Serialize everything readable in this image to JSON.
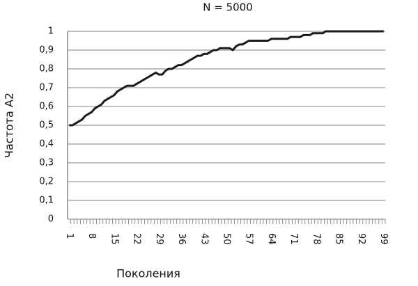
{
  "chart_data": {
    "type": "line",
    "title": "N = 5000",
    "y_label": "Частота А2",
    "x_label": "Поколения",
    "categories": [
      "1",
      null,
      null,
      null,
      null,
      null,
      null,
      "8",
      null,
      null,
      null,
      null,
      null,
      null,
      "15",
      null,
      null,
      null,
      null,
      null,
      null,
      "22",
      null,
      null,
      null,
      null,
      null,
      null,
      "29",
      null,
      null,
      null,
      null,
      null,
      null,
      "36",
      null,
      null,
      null,
      null,
      null,
      null,
      "43",
      null,
      null,
      null,
      null,
      null,
      null,
      "50",
      null,
      null,
      null,
      null,
      null,
      null,
      "57",
      null,
      null,
      null,
      null,
      null,
      null,
      "64",
      null,
      null,
      null,
      null,
      null,
      null,
      "71",
      null,
      null,
      null,
      null,
      null,
      null,
      "78",
      null,
      null,
      null,
      null,
      null,
      null,
      "85",
      null,
      null,
      null,
      null,
      null,
      null,
      "92",
      null,
      null,
      null,
      null,
      null,
      null,
      "99"
    ],
    "values": [
      0.5,
      0.5,
      0.51,
      0.52,
      0.53,
      0.55,
      0.56,
      0.57,
      0.59,
      0.6,
      0.61,
      0.63,
      0.64,
      0.65,
      0.66,
      0.68,
      0.69,
      0.7,
      0.71,
      0.71,
      0.71,
      0.72,
      0.73,
      0.74,
      0.75,
      0.76,
      0.77,
      0.78,
      0.77,
      0.77,
      0.79,
      0.8,
      0.8,
      0.81,
      0.82,
      0.82,
      0.83,
      0.84,
      0.85,
      0.86,
      0.87,
      0.87,
      0.88,
      0.88,
      0.89,
      0.9,
      0.9,
      0.91,
      0.91,
      0.91,
      0.91,
      0.9,
      0.92,
      0.93,
      0.93,
      0.94,
      0.95,
      0.95,
      0.95,
      0.95,
      0.95,
      0.95,
      0.95,
      0.96,
      0.96,
      0.96,
      0.96,
      0.96,
      0.96,
      0.97,
      0.97,
      0.97,
      0.97,
      0.98,
      0.98,
      0.98,
      0.99,
      0.99,
      0.99,
      0.99,
      1,
      1,
      1,
      1,
      1,
      1,
      1,
      1,
      1,
      1,
      1,
      1,
      1,
      1,
      1,
      1,
      1,
      1,
      1
    ],
    "color": "#1a1a1a",
    "ylim": [
      0,
      1
    ],
    "yticks": [
      0,
      {
        "value": 0.1,
        "label": "0,1"
      },
      {
        "value": 0.2,
        "label": "0,2"
      },
      {
        "value": 0.3,
        "label": "0,3"
      },
      {
        "value": 0.4,
        "label": "0,4"
      },
      {
        "value": 0.5,
        "label": "0,5"
      },
      {
        "value": 0.6,
        "label": "0,6"
      },
      {
        "value": 0.7,
        "label": "0,7"
      },
      {
        "value": 0.8,
        "label": "0,8"
      },
      {
        "value": 0.9,
        "label": "0,9"
      },
      1
    ],
    "grid": true
  }
}
